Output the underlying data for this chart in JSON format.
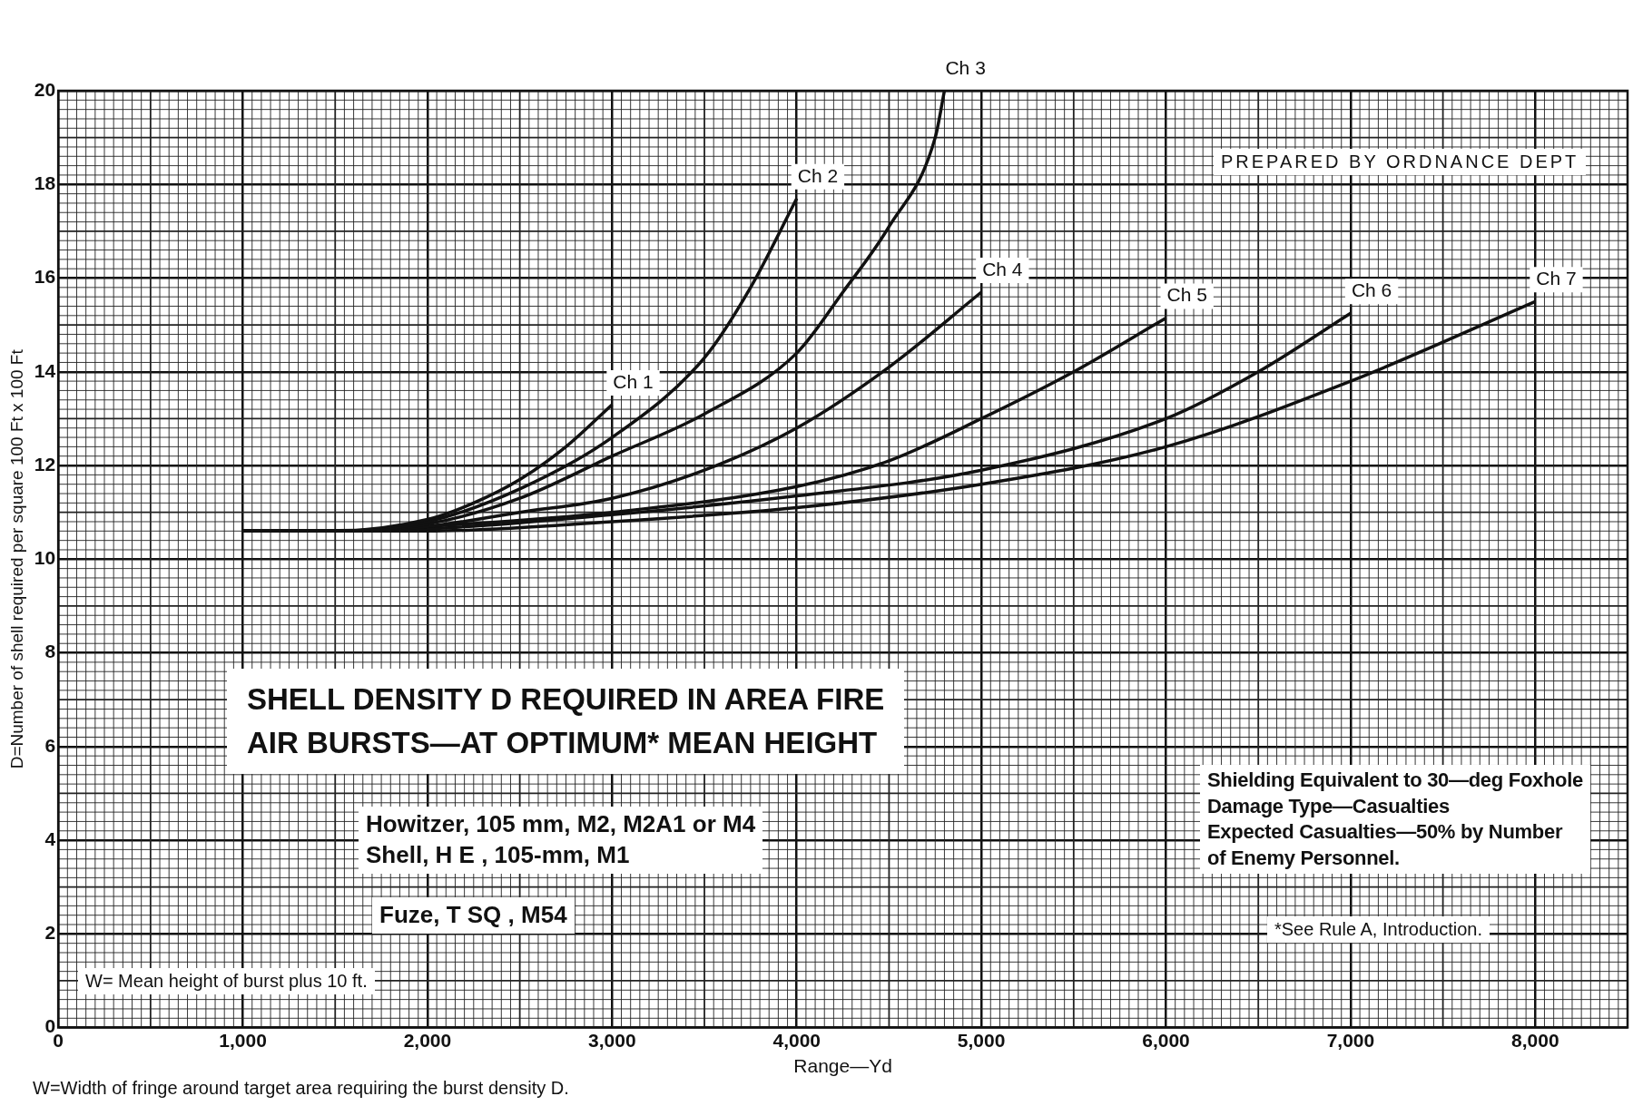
{
  "chart_data": {
    "type": "line",
    "title": "SHELL DENSITY D REQUIRED IN AREA FIRE",
    "subtitle": "AIR BURSTS—AT OPTIMUM* MEAN HEIGHT",
    "xlabel": "Range—Yd",
    "ylabel": "D=Number of shell required per square 100 Ft x 100 Ft",
    "xlim": [
      0,
      8500
    ],
    "ylim": [
      0,
      20
    ],
    "xticks": [
      0,
      {
        "value": 1000,
        "label": "1,000"
      },
      {
        "value": 2000,
        "label": "2,000"
      },
      {
        "value": 3000,
        "label": "3,000"
      },
      {
        "value": 4000,
        "label": "4,000"
      },
      {
        "value": 5000,
        "label": "5,000"
      },
      {
        "value": 6000,
        "label": "6,000"
      },
      {
        "value": 7000,
        "label": "7,000"
      },
      {
        "value": 8000,
        "label": "8,000"
      }
    ],
    "yticks": [
      0,
      2,
      4,
      6,
      8,
      10,
      12,
      14,
      16,
      18,
      20
    ],
    "grid": true,
    "legend": false,
    "marker": "none",
    "line_style": "solid",
    "series": [
      {
        "name": "Ch 1",
        "color": "#111111",
        "x": [
          1000,
          1500,
          2000,
          2250,
          2500,
          2750,
          3000
        ],
        "values": [
          10.6,
          10.6,
          10.85,
          11.2,
          11.7,
          12.4,
          13.3
        ]
      },
      {
        "name": "Ch 2",
        "color": "#111111",
        "x": [
          1000,
          1500,
          2000,
          2500,
          3000,
          3500,
          3750,
          4000
        ],
        "values": [
          10.6,
          10.6,
          10.8,
          11.5,
          12.6,
          14.3,
          15.8,
          17.7
        ]
      },
      {
        "name": "Ch 3",
        "color": "#111111",
        "x": [
          1000,
          1500,
          2000,
          2500,
          3000,
          3500,
          4000,
          4250,
          4500,
          4750,
          4800
        ],
        "values": [
          10.6,
          10.6,
          10.75,
          11.3,
          12.2,
          13.1,
          14.4,
          15.7,
          17.1,
          19.0,
          20
        ]
      },
      {
        "name": "Ch 4",
        "color": "#111111",
        "x": [
          1000,
          1500,
          2000,
          2500,
          3000,
          3500,
          4000,
          4500,
          5000
        ],
        "values": [
          10.6,
          10.6,
          10.7,
          11.0,
          11.3,
          11.9,
          12.8,
          14.1,
          15.7
        ]
      },
      {
        "name": "Ch 5",
        "color": "#111111",
        "x": [
          1000,
          1500,
          2000,
          3000,
          4000,
          4500,
          5000,
          5500,
          6000
        ],
        "values": [
          10.6,
          10.6,
          10.7,
          11.0,
          11.55,
          12.1,
          13.0,
          14.0,
          15.15
        ]
      },
      {
        "name": "Ch 6",
        "color": "#111111",
        "x": [
          1000,
          2000,
          3000,
          4000,
          5000,
          6000,
          6500,
          7000
        ],
        "values": [
          10.6,
          10.65,
          10.95,
          11.35,
          11.9,
          13.0,
          14.0,
          15.25
        ]
      },
      {
        "name": "Ch 7",
        "color": "#111111",
        "x": [
          1000,
          2000,
          3000,
          4000,
          5000,
          6000,
          7000,
          8000
        ],
        "values": [
          10.6,
          10.6,
          10.8,
          11.1,
          11.6,
          12.4,
          13.8,
          15.5
        ]
      }
    ],
    "annotations": [
      "PREPARED BY ORDNANCE DEPT",
      "Howitzer, 105 mm, M2, M2A1 or M4",
      "Shell, H E , 105-mm, M1",
      "Fuze, T SQ , M54",
      "W= Mean height of burst plus 10 ft.",
      "Shielding Equivalent to 30—deg Foxhole",
      "Damage Type—Casualties",
      "Expected Casualties—50% by Number",
      "of Enemy Personnel.",
      "*See Rule A, Introduction.",
      "W=Width of fringe around target area requiring the burst density D."
    ]
  }
}
